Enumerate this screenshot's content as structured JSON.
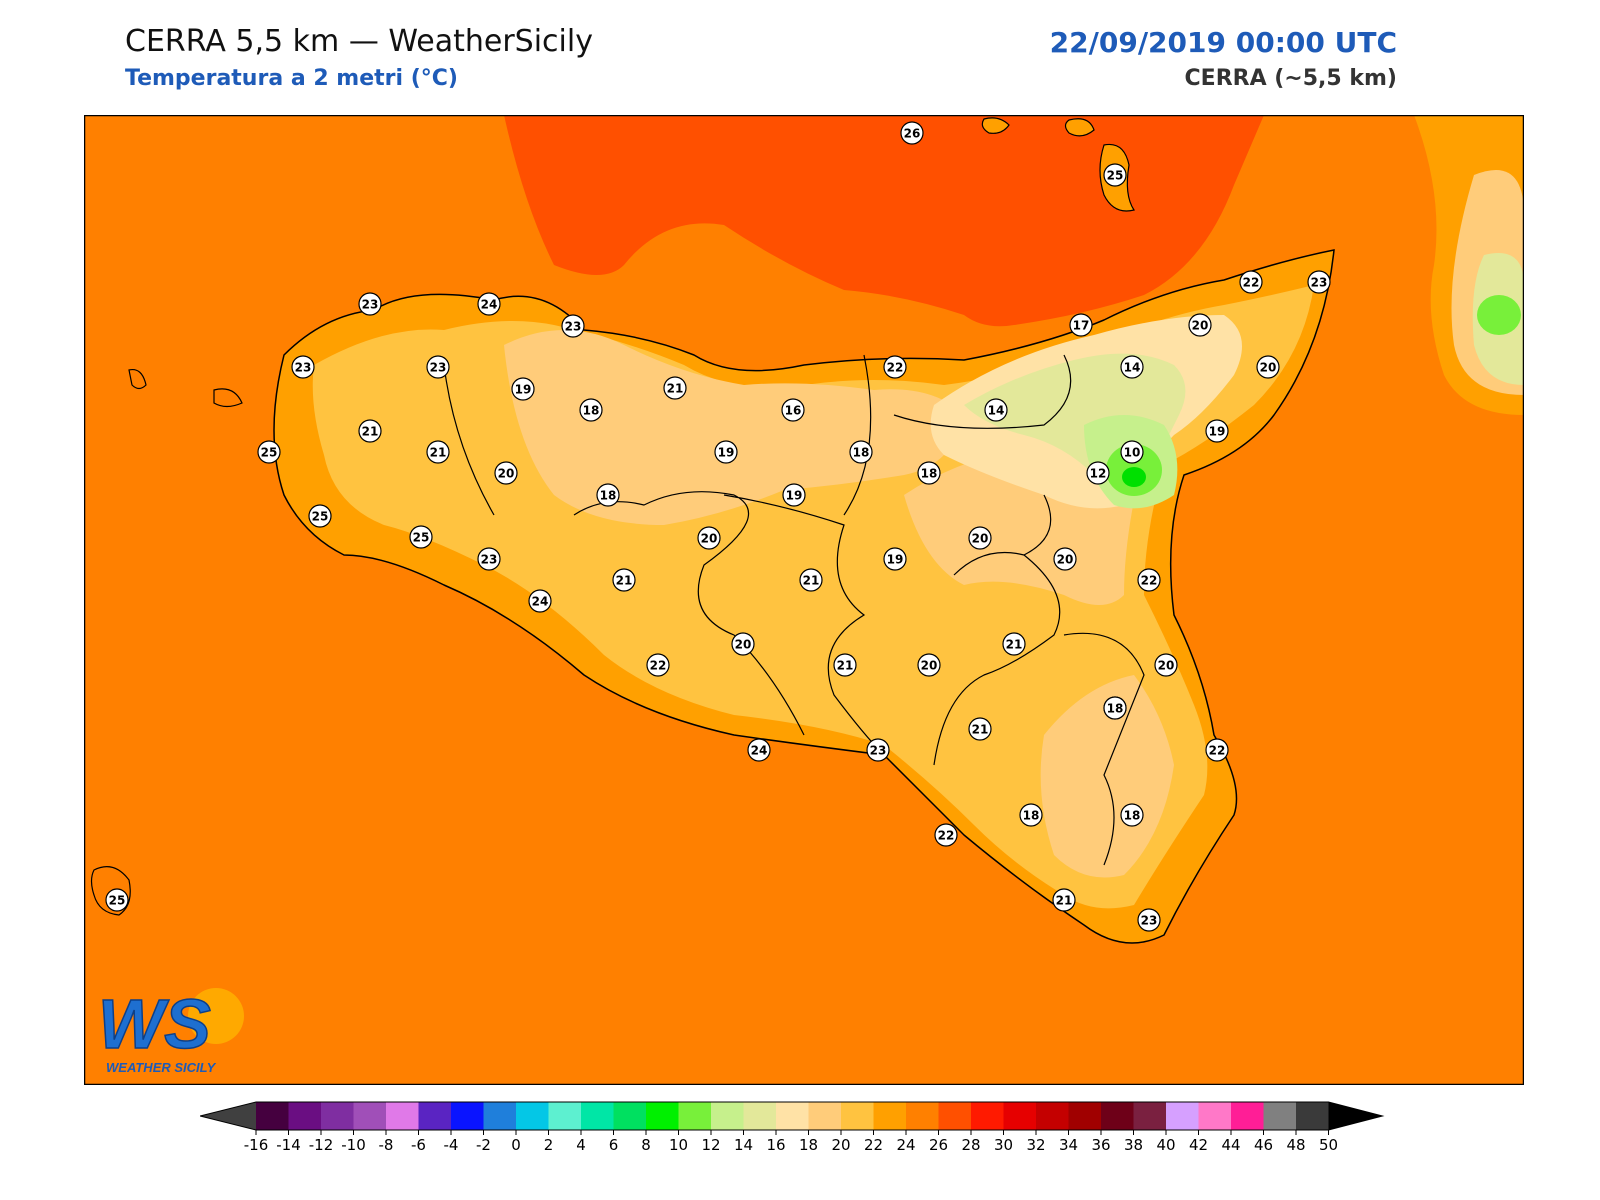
{
  "header": {
    "title": "CERRA 5,5 km — WeatherSicily",
    "subtitle": "Temperatura a 2 metri (°C)",
    "datetime": "22/09/2019 00:00 UTC",
    "model": "CERRA (~5,5 km)"
  },
  "logo": {
    "initials": "WS",
    "name": "WEATHER SICILY"
  },
  "colorbar": {
    "labels": [
      "-16",
      "-14",
      "-12",
      "-10",
      "-8",
      "-6",
      "-4",
      "-2",
      "0",
      "2",
      "4",
      "6",
      "8",
      "10",
      "12",
      "14",
      "16",
      "18",
      "20",
      "22",
      "24",
      "26",
      "28",
      "30",
      "32",
      "34",
      "36",
      "38",
      "40",
      "42",
      "44",
      "46",
      "48",
      "50"
    ],
    "colors": [
      "#45003f",
      "#6a0e82",
      "#7f2ea1",
      "#a04fb8",
      "#e079e8",
      "#5a24c2",
      "#0a14ff",
      "#1f7fdb",
      "#04c7e6",
      "#5df0d0",
      "#00e6a6",
      "#00e060",
      "#00f000",
      "#78f03a",
      "#c6f08c",
      "#e3e89a",
      "#ffe2a6",
      "#ffcc7a",
      "#ffc340",
      "#ffa000",
      "#ff8000",
      "#ff5000",
      "#ff1a00",
      "#e60000",
      "#c40000",
      "#a00000",
      "#6e0018",
      "#7a2040",
      "#d6a0ff",
      "#ff78c8",
      "#ff1e96",
      "#808080",
      "#3a3a3a"
    ],
    "under_color": "#404040",
    "over_color": "#000000"
  },
  "map": {
    "sea_color": "#ff8000",
    "stations": [
      {
        "value": "26"
      },
      {
        "value": "25"
      },
      {
        "value": "23"
      },
      {
        "value": "24"
      },
      {
        "value": "23"
      },
      {
        "value": "22"
      },
      {
        "value": "23"
      },
      {
        "value": "23"
      },
      {
        "value": "23"
      },
      {
        "value": "19"
      },
      {
        "value": "18"
      },
      {
        "value": "21"
      },
      {
        "value": "22"
      },
      {
        "value": "17"
      },
      {
        "value": "20"
      },
      {
        "value": "14"
      },
      {
        "value": "20"
      },
      {
        "value": "16"
      },
      {
        "value": "14"
      },
      {
        "value": "21"
      },
      {
        "value": "21"
      },
      {
        "value": "20"
      },
      {
        "value": "19"
      },
      {
        "value": "18"
      },
      {
        "value": "10"
      },
      {
        "value": "25"
      },
      {
        "value": "18"
      },
      {
        "value": "18"
      },
      {
        "value": "12"
      },
      {
        "value": "19"
      },
      {
        "value": "19"
      },
      {
        "value": "25"
      },
      {
        "value": "25"
      },
      {
        "value": "20"
      },
      {
        "value": "20"
      },
      {
        "value": "23"
      },
      {
        "value": "21"
      },
      {
        "value": "19"
      },
      {
        "value": "20"
      },
      {
        "value": "21"
      },
      {
        "value": "22"
      },
      {
        "value": "24"
      },
      {
        "value": "20"
      },
      {
        "value": "21"
      },
      {
        "value": "22"
      },
      {
        "value": "21"
      },
      {
        "value": "20"
      },
      {
        "value": "20"
      },
      {
        "value": "18"
      },
      {
        "value": "21"
      },
      {
        "value": "18"
      },
      {
        "value": "22"
      },
      {
        "value": "24"
      },
      {
        "value": "23"
      },
      {
        "value": "22"
      },
      {
        "value": "18"
      },
      {
        "value": "18"
      },
      {
        "value": "21"
      },
      {
        "value": "23"
      },
      {
        "value": "25"
      }
    ]
  }
}
